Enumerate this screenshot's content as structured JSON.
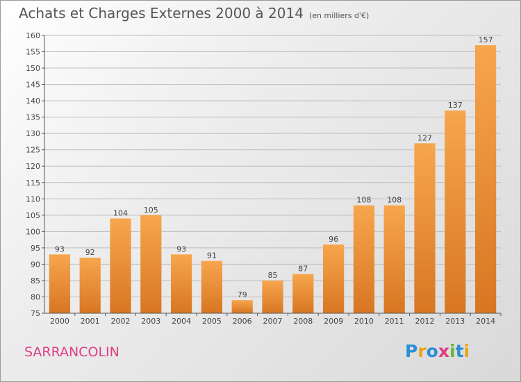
{
  "header": {
    "title": "Achats et Charges Externes 2000 à 2014",
    "subtitle": "(en milliers d'€)"
  },
  "footer": {
    "place": "SARRANCOLIN",
    "logo": "Proxiti",
    "logo_colors": [
      "#2a8fd6",
      "#e8a417",
      "#2a8fd6",
      "#e03c84",
      "#69b533",
      "#2a8fd6",
      "#e8a417"
    ]
  },
  "colors": {
    "bar_light": "#f7a64e",
    "bar_dark": "#d87622",
    "grid": "#bdbdbd",
    "axis": "#555555"
  },
  "chart_data": {
    "type": "bar",
    "title": "Achats et Charges Externes 2000 à 2014",
    "subtitle": "(en milliers d'€)",
    "categories": [
      "2000",
      "2001",
      "2002",
      "2003",
      "2004",
      "2005",
      "2006",
      "2007",
      "2008",
      "2009",
      "2010",
      "2011",
      "2012",
      "2013",
      "2014"
    ],
    "values": [
      93,
      92,
      104,
      105,
      93,
      91,
      79,
      85,
      87,
      96,
      108,
      108,
      127,
      137,
      157
    ],
    "ylim": [
      75,
      160
    ],
    "yticks": [
      75,
      80,
      85,
      90,
      95,
      100,
      105,
      110,
      115,
      120,
      125,
      130,
      135,
      140,
      145,
      150,
      155,
      160
    ],
    "grid": true,
    "xlabel": "",
    "ylabel": ""
  }
}
